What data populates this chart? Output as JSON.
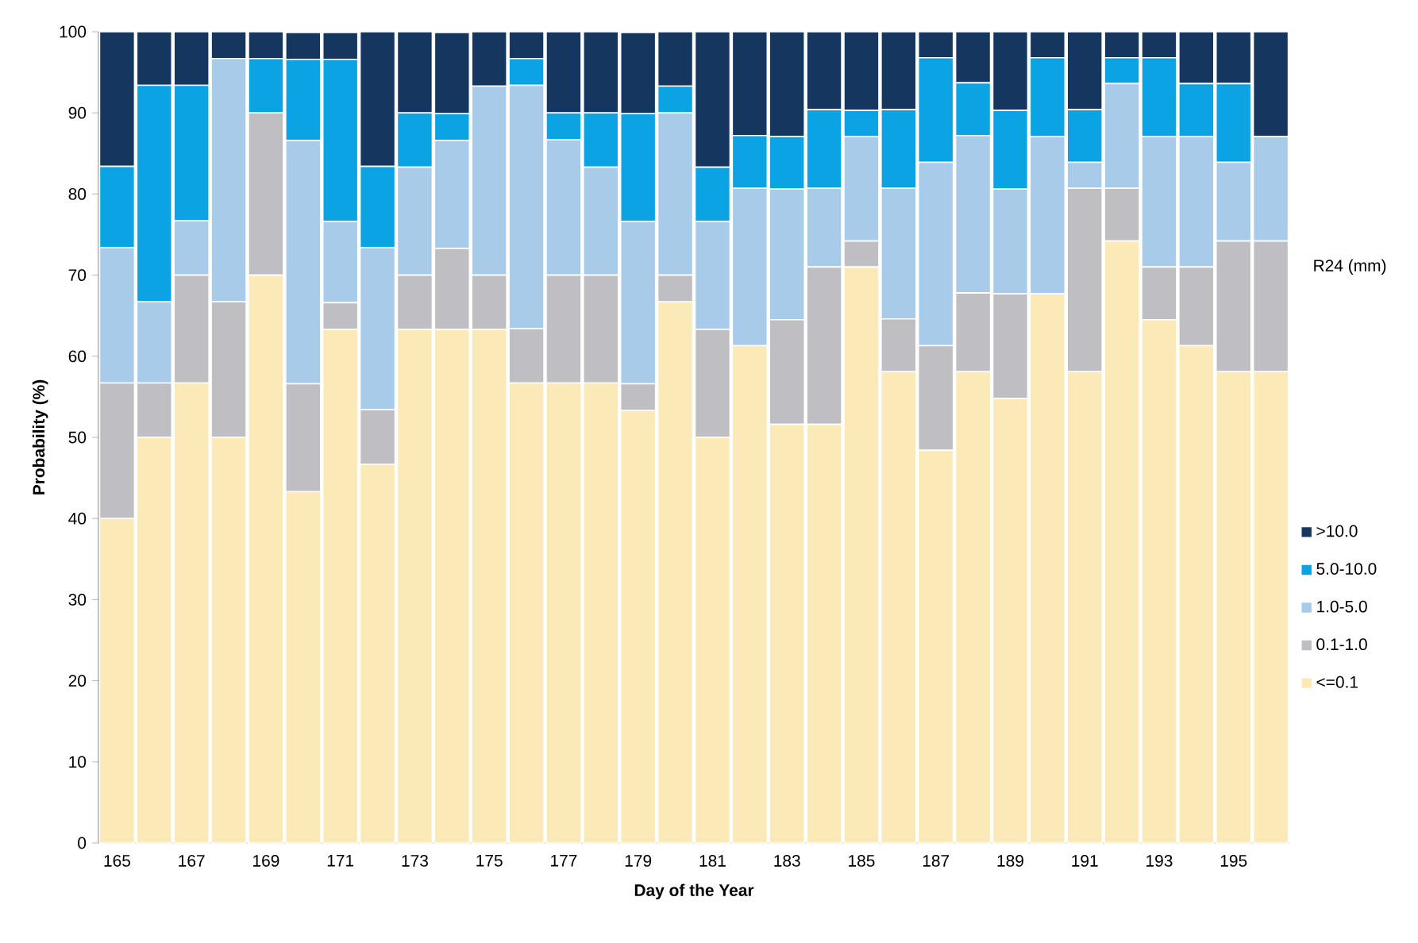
{
  "chart_data": {
    "type": "bar",
    "stacked": true,
    "xlabel": "Day of the Year",
    "ylabel": "Probability (%)",
    "legend_title": "R24 (mm)",
    "legend": "right",
    "categories": [
      "165",
      null,
      "167",
      null,
      "169",
      null,
      "171",
      null,
      "173",
      null,
      "175",
      null,
      "177",
      null,
      "179",
      null,
      "181",
      null,
      "183",
      null,
      "185",
      null,
      "187",
      null,
      "189",
      null,
      "191",
      null,
      "193",
      null,
      "195",
      null
    ],
    "ylim": [
      0,
      100
    ],
    "yticks": [
      0,
      10,
      20,
      30,
      40,
      50,
      60,
      70,
      80,
      90,
      100
    ],
    "series": [
      {
        "name": "<=0.1",
        "color": "#fbe9b7",
        "values": [
          40,
          50,
          56.7,
          50,
          70,
          43.3,
          63.3,
          46.7,
          63.3,
          63.3,
          63.3,
          56.7,
          56.7,
          56.7,
          53.3,
          66.7,
          50,
          61.3,
          51.6,
          51.6,
          71.0,
          58.1,
          48.4,
          58.1,
          54.8,
          67.7,
          58.1,
          74.2,
          64.5,
          61.3,
          58.1,
          58.1
        ]
      },
      {
        "name": "0.1-1.0",
        "color": "#bfbec3",
        "values": [
          16.7,
          6.7,
          13.3,
          16.7,
          20,
          13.3,
          3.3,
          6.7,
          6.7,
          10,
          6.7,
          6.7,
          13.3,
          13.3,
          3.3,
          3.3,
          13.3,
          0,
          12.9,
          19.4,
          3.2,
          6.5,
          12.9,
          9.7,
          12.9,
          0,
          22.6,
          6.5,
          6.5,
          9.7,
          16.1,
          16.1
        ]
      },
      {
        "name": "1.0-5.0",
        "color": "#a9cbea",
        "values": [
          16.7,
          10,
          6.7,
          30,
          0,
          30,
          10,
          20,
          13.3,
          13.3,
          23.3,
          30,
          16.7,
          13.3,
          20,
          20,
          13.3,
          19.4,
          16.1,
          9.7,
          12.9,
          16.1,
          22.6,
          19.4,
          12.9,
          19.4,
          3.2,
          12.9,
          16.1,
          16.1,
          9.7,
          12.9
        ]
      },
      {
        "name": "5.0-10.0",
        "color": "#0ba3e3",
        "values": [
          10,
          26.7,
          16.7,
          0,
          6.7,
          10,
          20,
          10,
          6.7,
          3.3,
          0,
          3.3,
          3.3,
          6.7,
          13.3,
          3.3,
          6.7,
          6.5,
          6.5,
          9.7,
          3.2,
          9.7,
          12.9,
          6.5,
          9.7,
          9.7,
          6.5,
          3.2,
          9.7,
          6.5,
          9.7,
          0
        ]
      },
      {
        "name": ">10.0",
        "color": "#15375f",
        "values": [
          16.6,
          6.6,
          6.6,
          3.3,
          3.3,
          3.3,
          3.3,
          16.6,
          10,
          10,
          6.7,
          3.3,
          10,
          10,
          10,
          6.7,
          16.7,
          12.8,
          12.9,
          9.6,
          9.7,
          9.6,
          3.2,
          6.3,
          9.7,
          3.2,
          9.6,
          3.2,
          3.2,
          6.4,
          6.4,
          12.9
        ]
      }
    ]
  }
}
